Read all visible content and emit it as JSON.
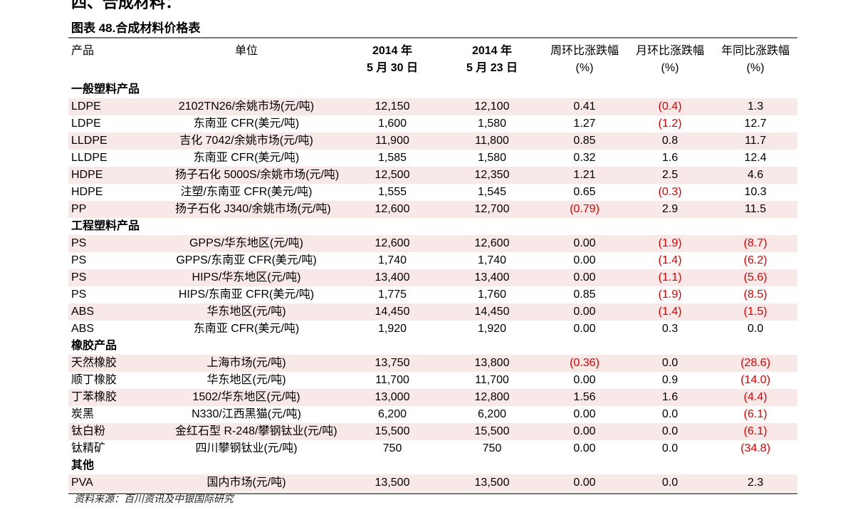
{
  "section_heading": "四、合成材料：",
  "caption": "图表 48.合成材料价格表",
  "headers": {
    "product": "产品",
    "unit": "单位",
    "date1_line1": "2014 年",
    "date1_line2": "5 月 30 日",
    "date2_line1": "2014 年",
    "date2_line2": "5 月 23 日",
    "wow_line1": "周环比涨跌幅",
    "wow_line2": "(%)",
    "mom_line1": "月环比涨跌幅",
    "mom_line2": "(%)",
    "yoy_line1": "年同比涨跌幅",
    "yoy_line2": "(%)"
  },
  "groups": [
    {
      "title": "一般塑料产品",
      "rows": [
        [
          "LDPE",
          "2102TN26/余姚市场(元/吨)",
          "12,150",
          "12,100",
          "0.41",
          "(0.4)",
          "1.3"
        ],
        [
          "LDPE",
          "东南亚 CFR(美元/吨)",
          "1,600",
          "1,580",
          "1.27",
          "(1.2)",
          "12.7"
        ],
        [
          "LLDPE",
          "吉化 7042/余姚市场(元/吨)",
          "11,900",
          "11,800",
          "0.85",
          "0.8",
          "11.7"
        ],
        [
          "LLDPE",
          "东南亚 CFR(美元/吨)",
          "1,585",
          "1,580",
          "0.32",
          "1.6",
          "12.4"
        ],
        [
          "HDPE",
          "扬子石化 5000S/余姚市场(元/吨)",
          "12,500",
          "12,350",
          "1.21",
          "2.5",
          "4.6"
        ],
        [
          "HDPE",
          "注塑/东南亚 CFR(美元/吨)",
          "1,555",
          "1,545",
          "0.65",
          "(0.3)",
          "10.3"
        ],
        [
          "PP",
          "扬子石化 J340/余姚市场(元/吨)",
          "12,600",
          "12,700",
          "(0.79)",
          "2.9",
          "11.5"
        ]
      ]
    },
    {
      "title": "工程塑料产品",
      "rows": [
        [
          "PS",
          "GPPS/华东地区(元/吨)",
          "12,600",
          "12,600",
          "0.00",
          "(1.9)",
          "(8.7)"
        ],
        [
          "PS",
          "GPPS/东南亚 CFR(美元/吨)",
          "1,740",
          "1,740",
          "0.00",
          "(1.4)",
          "(6.2)"
        ],
        [
          "PS",
          "HIPS/华东地区(元/吨)",
          "13,400",
          "13,400",
          "0.00",
          "(1.1)",
          "(5.6)"
        ],
        [
          "PS",
          "HIPS/东南亚 CFR(美元/吨)",
          "1,775",
          "1,760",
          "0.85",
          "(1.9)",
          "(8.5)"
        ],
        [
          "ABS",
          "华东地区(元/吨)",
          "14,450",
          "14,450",
          "0.00",
          "(1.4)",
          "(1.5)"
        ],
        [
          "ABS",
          "东南亚 CFR(美元/吨)",
          "1,920",
          "1,920",
          "0.00",
          "0.3",
          "0.0"
        ]
      ]
    },
    {
      "title": "橡胶产品",
      "rows": [
        [
          "天然橡胶",
          "上海市场(元/吨)",
          "13,750",
          "13,800",
          "(0.36)",
          "0.0",
          "(28.6)"
        ],
        [
          "顺丁橡胶",
          "华东地区(元/吨)",
          "11,700",
          "11,700",
          "0.00",
          "0.9",
          "(14.0)"
        ],
        [
          "丁苯橡胶",
          "1502/华东地区(元/吨)",
          "13,000",
          "12,800",
          "1.56",
          "1.6",
          "(4.4)"
        ],
        [
          "炭黑",
          "N330/江西黑猫(元/吨)",
          "6,200",
          "6,200",
          "0.00",
          "0.0",
          "(6.1)"
        ],
        [
          "钛白粉",
          "金红石型 R-248/攀钢钛业(元/吨)",
          "15,500",
          "15,500",
          "0.00",
          "0.0",
          "(6.1)"
        ],
        [
          "钛精矿",
          "四川攀钢钛业(元/吨)",
          "750",
          "750",
          "0.00",
          "0.0",
          "(34.8)"
        ]
      ]
    },
    {
      "title": "其他",
      "rows": [
        [
          "PVA",
          "国内市场(元/吨)",
          "13,500",
          "13,500",
          "0.00",
          "0.0",
          "2.3"
        ]
      ]
    }
  ],
  "source": "资料来源：百川资讯及中银国际研究",
  "colors": {
    "negative": "#e00000",
    "stripe": "#f9e8e8",
    "rule": "#777777"
  }
}
